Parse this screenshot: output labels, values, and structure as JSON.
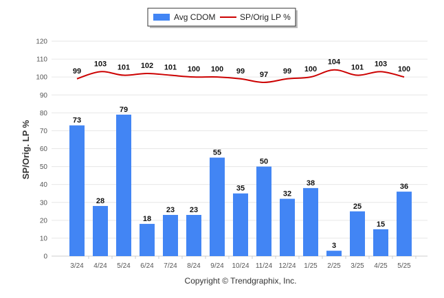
{
  "chart_data": {
    "type": "bar",
    "categories": [
      "3/24",
      "4/24",
      "5/24",
      "6/24",
      "7/24",
      "8/24",
      "9/24",
      "10/24",
      "11/24",
      "12/24",
      "1/25",
      "2/25",
      "3/25",
      "4/25",
      "5/25"
    ],
    "series": [
      {
        "name": "Avg CDOM",
        "kind": "bar",
        "color": "#4285f4",
        "values": [
          73,
          28,
          79,
          18,
          23,
          23,
          55,
          35,
          50,
          32,
          38,
          3,
          25,
          15,
          36
        ]
      },
      {
        "name": "SP/Orig LP %",
        "kind": "line",
        "color": "#cc0000",
        "values": [
          99,
          103,
          101,
          102,
          101,
          100,
          100,
          99,
          97,
          99,
          100,
          104,
          101,
          103,
          100
        ]
      }
    ],
    "ylabel": "SP/Orig. LP %",
    "ylim": [
      0,
      120
    ],
    "yticks": [
      0,
      10,
      20,
      30,
      40,
      50,
      60,
      70,
      80,
      90,
      100,
      110,
      120
    ],
    "grid": true,
    "legend_position": "top-center"
  },
  "footer": {
    "copyright": "Copyright © Trendgraphix, Inc."
  },
  "colors": {
    "bar": "#4285f4",
    "line": "#cc0000",
    "grid": "#e6e6e6"
  }
}
